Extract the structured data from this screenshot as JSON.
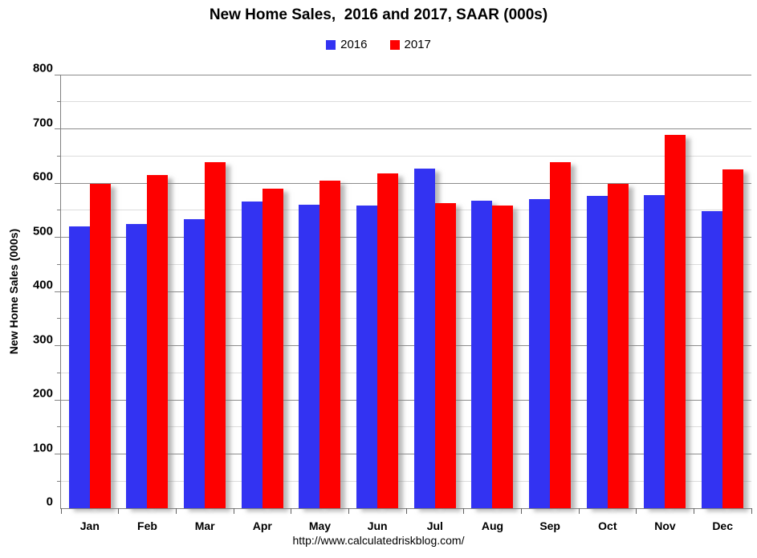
{
  "title": "New Home Sales,  2016 and 2017, SAAR (000s)",
  "source_url": "http://www.calculatedriskblog.com/",
  "colors": {
    "series_2016": "#3333f2",
    "series_2017": "#fe0000",
    "major_gridline": "#8c8c8c",
    "minor_gridline": "#dcdcdc",
    "axis_line": "#808080"
  },
  "chart_data": {
    "type": "bar",
    "title": "New Home Sales,  2016 and 2017, SAAR (000s)",
    "xlabel": "",
    "ylabel": "New Home Sales (000s)",
    "ylim": [
      0,
      800
    ],
    "ytick_interval": 100,
    "minor_tick_interval": 50,
    "grid": true,
    "legend_position": "top-center",
    "categories": [
      "Jan",
      "Feb",
      "Mar",
      "Apr",
      "May",
      "Jun",
      "Jul",
      "Aug",
      "Sep",
      "Oct",
      "Nov",
      "Dec"
    ],
    "series": [
      {
        "name": "2016",
        "color": "#3333f2",
        "values": [
          520,
          525,
          533,
          566,
          560,
          559,
          627,
          567,
          570,
          577,
          578,
          548
        ]
      },
      {
        "name": "2017",
        "color": "#fe0000",
        "values": [
          599,
          615,
          638,
          590,
          605,
          618,
          563,
          559,
          639,
          599,
          689,
          625
        ]
      }
    ]
  }
}
